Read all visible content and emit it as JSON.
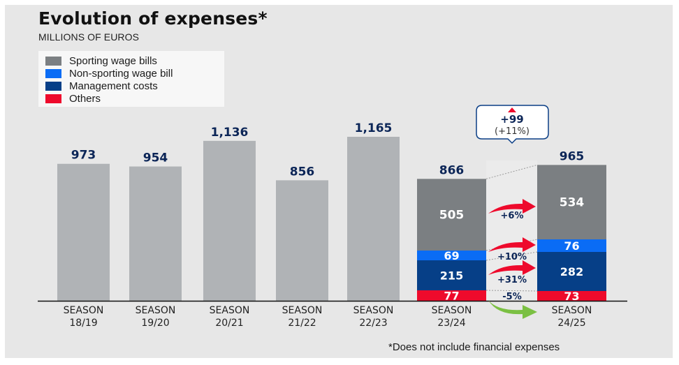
{
  "colors": {
    "background": "#e7e7e7",
    "legend_bg": "#f7f7f7",
    "single_bar": "#b0b3b6",
    "sporting": "#7b7f82",
    "non_sporting": "#0a6cf5",
    "management": "#063f87",
    "others": "#ee0a2c",
    "value_label": "#0b2557",
    "arrow_red": "#ee0a2c",
    "arrow_green": "#7bc043",
    "callout_border": "#0b3f86"
  },
  "chart_data": {
    "type": "bar",
    "title": "Evolution of expenses*",
    "subtitle": "MILLIONS OF EUROS",
    "xlabel": "",
    "ylabel": "Millions of euros",
    "ylim": [
      0,
      1165
    ],
    "grid": false,
    "legend_position": "top-left",
    "legend": [
      {
        "key": "sporting",
        "label": "Sporting wage bills"
      },
      {
        "key": "non_sporting",
        "label": "Non-sporting wage bill"
      },
      {
        "key": "management",
        "label": "Management costs"
      },
      {
        "key": "others",
        "label": "Others"
      }
    ],
    "categories": [
      {
        "line1": "SEASON",
        "line2": "18/19"
      },
      {
        "line1": "SEASON",
        "line2": "19/20"
      },
      {
        "line1": "SEASON",
        "line2": "20/21"
      },
      {
        "line1": "SEASON",
        "line2": "21/22"
      },
      {
        "line1": "SEASON",
        "line2": "22/23"
      },
      {
        "line1": "SEASON",
        "line2": "23/24"
      },
      {
        "line1": "SEASON",
        "line2": "24/25"
      }
    ],
    "totals": [
      973,
      954,
      1136,
      856,
      1165,
      866,
      965
    ],
    "total_labels": [
      "973",
      "954",
      "1,136",
      "856",
      "1,165",
      "866",
      "965"
    ],
    "stacked": {
      "season_23_24": {
        "sporting": 505,
        "non_sporting": 69,
        "management": 215,
        "others": 77
      },
      "season_24_25": {
        "sporting": 534,
        "non_sporting": 76,
        "management": 282,
        "others": 73
      }
    },
    "changes": [
      {
        "key": "sporting",
        "label": "+6%",
        "direction": "up"
      },
      {
        "key": "non_sporting",
        "label": "+10%",
        "direction": "up"
      },
      {
        "key": "management",
        "label": "+31%",
        "direction": "up"
      },
      {
        "key": "others",
        "label": "-5%",
        "direction": "down"
      }
    ],
    "callout": {
      "line1": "+99",
      "line2": "(+11%)",
      "direction": "up"
    },
    "footnote": "*Does not include financial expenses"
  }
}
